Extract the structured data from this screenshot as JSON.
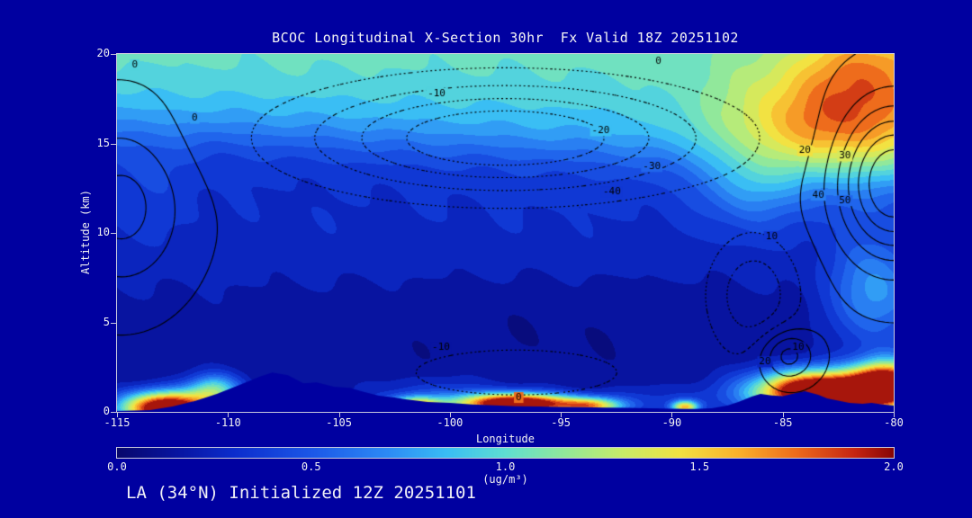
{
  "title": "BCOC Longitudinal X-Section 30hr  Fx Valid 18Z 20251102",
  "footer": "LA (34°N) Initialized 12Z 20251101",
  "colors": {
    "background": "#0000A0",
    "text": "#F2F2F2",
    "contour": "#000000",
    "frame": "#C9C9DD"
  },
  "axes": {
    "x": {
      "label": "Longitude",
      "min": -115,
      "max": -80,
      "ticks": [
        -115,
        -110,
        -105,
        -100,
        -95,
        -90,
        -85,
        -80
      ]
    },
    "y": {
      "label": "Altitude (km)",
      "min": 0,
      "max": 20,
      "ticks": [
        0,
        5,
        10,
        15,
        20
      ]
    }
  },
  "colorbar": {
    "min": 0.0,
    "max": 2.0,
    "ticks": [
      "0.0",
      "0.5",
      "1.0",
      "1.5",
      "2.0"
    ],
    "units": "(ug/m³)"
  },
  "chart_data": {
    "type": "heatmap",
    "field": "BCOC concentration cross-section with overlaid line contours",
    "units": "ug/m3",
    "x_range": [
      -115,
      -80
    ],
    "y_range": [
      0,
      20
    ],
    "value_max": 2.0,
    "fill_level_step": 0.1,
    "background_value": 0.12,
    "texture_amp": 0.025,
    "colormap": [
      [
        0.0,
        [
          8,
          8,
          108
        ]
      ],
      [
        0.15,
        [
          8,
          20,
          160
        ]
      ],
      [
        0.3,
        [
          12,
          45,
          205
        ]
      ],
      [
        0.5,
        [
          28,
          88,
          232
        ]
      ],
      [
        0.7,
        [
          45,
          140,
          246
        ]
      ],
      [
        0.85,
        [
          58,
          190,
          244
        ]
      ],
      [
        1.0,
        [
          95,
          222,
          210
        ]
      ],
      [
        1.15,
        [
          145,
          232,
          155
        ]
      ],
      [
        1.3,
        [
          200,
          236,
          105
        ]
      ],
      [
        1.45,
        [
          242,
          226,
          66
        ]
      ],
      [
        1.6,
        [
          250,
          178,
          44
        ]
      ],
      [
        1.75,
        [
          238,
          108,
          28
        ]
      ],
      [
        1.9,
        [
          198,
          38,
          18
        ]
      ],
      [
        2.0,
        [
          136,
          6,
          6
        ]
      ]
    ],
    "upper_layer": {
      "amp": 0.8,
      "alt_left": 15.8,
      "alt_slope_per_deg": -0.055,
      "width_km": 1.0
    },
    "top_band": {
      "amp": 0.12,
      "alt_km": 18.5,
      "width_km": 0.8
    },
    "conc_blobs": [
      [
        -97.5,
        10.8,
        60,
        5.0,
        0.16
      ],
      [
        -82.5,
        16.0,
        5.0,
        3.5,
        0.85
      ],
      [
        -81.0,
        19.5,
        3.0,
        2.5,
        0.4
      ],
      [
        -86.5,
        12.5,
        2.0,
        2.2,
        0.3
      ],
      [
        -80.8,
        6.5,
        2.0,
        3.0,
        0.55
      ],
      [
        -114.0,
        13.0,
        2.5,
        3.0,
        0.12
      ],
      [
        -112.8,
        0.2,
        2.0,
        0.9,
        2.3
      ],
      [
        -110.6,
        1.2,
        1.2,
        0.9,
        0.9
      ],
      [
        -101.6,
        0.3,
        1.2,
        0.5,
        1.4
      ],
      [
        -97.0,
        0.45,
        2.6,
        0.55,
        2.3
      ],
      [
        -93.6,
        0.3,
        1.4,
        0.45,
        1.2
      ],
      [
        -89.4,
        0.25,
        0.6,
        0.35,
        1.3
      ],
      [
        -83.3,
        1.1,
        2.9,
        1.15,
        2.6
      ],
      [
        -80.3,
        1.5,
        1.5,
        1.3,
        2.0
      ],
      [
        -100.5,
        0.9,
        3.5,
        1.0,
        0.25
      ],
      [
        -90.5,
        0.6,
        3.0,
        0.9,
        0.2
      ],
      [
        -96.0,
        5.5,
        10,
        2.5,
        -0.05
      ]
    ],
    "terrain_profile": [
      [
        -115,
        0.05
      ],
      [
        -113.5,
        0.1
      ],
      [
        -112.5,
        0.3
      ],
      [
        -111.5,
        0.6
      ],
      [
        -110.5,
        1.0
      ],
      [
        -109.5,
        1.5
      ],
      [
        -108.5,
        2.0
      ],
      [
        -108,
        2.2
      ],
      [
        -107.3,
        2.05
      ],
      [
        -106.6,
        1.6
      ],
      [
        -106,
        1.65
      ],
      [
        -105.2,
        1.4
      ],
      [
        -104.5,
        1.35
      ],
      [
        -104,
        1.15
      ],
      [
        -103.2,
        0.9
      ],
      [
        -102.5,
        0.8
      ],
      [
        -102,
        0.7
      ],
      [
        -101,
        0.55
      ],
      [
        -100,
        0.5
      ],
      [
        -99,
        0.42
      ],
      [
        -98,
        0.36
      ],
      [
        -97,
        0.32
      ],
      [
        -96,
        0.3
      ],
      [
        -95,
        0.28
      ],
      [
        -94,
        0.26
      ],
      [
        -93,
        0.24
      ],
      [
        -92,
        0.22
      ],
      [
        -91,
        0.2
      ],
      [
        -90,
        0.18
      ],
      [
        -89,
        0.16
      ],
      [
        -88.2,
        0.2
      ],
      [
        -87.5,
        0.35
      ],
      [
        -87,
        0.55
      ],
      [
        -86.4,
        0.85
      ],
      [
        -86,
        1.0
      ],
      [
        -85.5,
        0.92
      ],
      [
        -85,
        0.88
      ],
      [
        -84.4,
        1.05
      ],
      [
        -84,
        1.15
      ],
      [
        -83.4,
        0.95
      ],
      [
        -83,
        0.75
      ],
      [
        -82.4,
        0.6
      ],
      [
        -82,
        0.5
      ],
      [
        -81.4,
        0.45
      ],
      [
        -81,
        0.5
      ],
      [
        -80.5,
        0.42
      ],
      [
        -80,
        0.35
      ]
    ],
    "contour_base": -2,
    "contour_levels": [
      -40,
      -30,
      -20,
      -10,
      0,
      10,
      20,
      30,
      40,
      50
    ],
    "contour_blobs": [
      [
        -114.8,
        11.5,
        2.8,
        4.5,
        26
      ],
      [
        -97.5,
        15.3,
        8.5,
        2.9,
        -50
      ],
      [
        -80.0,
        12.8,
        2.5,
        4.2,
        64
      ],
      [
        -86.3,
        6.5,
        2.0,
        3.2,
        -26
      ],
      [
        -97.0,
        2.2,
        6.5,
        1.8,
        -13
      ],
      [
        -84.8,
        3.2,
        1.2,
        1.4,
        30
      ]
    ],
    "contour_labels": [
      {
        "text": "0",
        "lon": -114.2,
        "alt": 19.4
      },
      {
        "text": "0",
        "lon": -90.6,
        "alt": 19.6
      },
      {
        "text": "0",
        "lon": -111.5,
        "alt": 16.4
      },
      {
        "text": "-10",
        "lon": -100.6,
        "alt": 17.8
      },
      {
        "text": "-20",
        "lon": -93.2,
        "alt": 15.7
      },
      {
        "text": "-30",
        "lon": -90.9,
        "alt": 13.7
      },
      {
        "text": "-40",
        "lon": -92.7,
        "alt": 12.3
      },
      {
        "text": "20",
        "lon": -84.0,
        "alt": 14.6
      },
      {
        "text": "30",
        "lon": -82.2,
        "alt": 14.3
      },
      {
        "text": "40",
        "lon": -83.4,
        "alt": 12.1
      },
      {
        "text": "50",
        "lon": -82.2,
        "alt": 11.8
      },
      {
        "text": "10",
        "lon": -85.5,
        "alt": 9.8
      },
      {
        "text": "-10",
        "lon": -100.4,
        "alt": 3.6
      },
      {
        "text": "0",
        "lon": -96.9,
        "alt": 0.8
      },
      {
        "text": "10",
        "lon": -84.3,
        "alt": 3.6
      },
      {
        "text": "20",
        "lon": -85.8,
        "alt": 2.8
      }
    ]
  }
}
